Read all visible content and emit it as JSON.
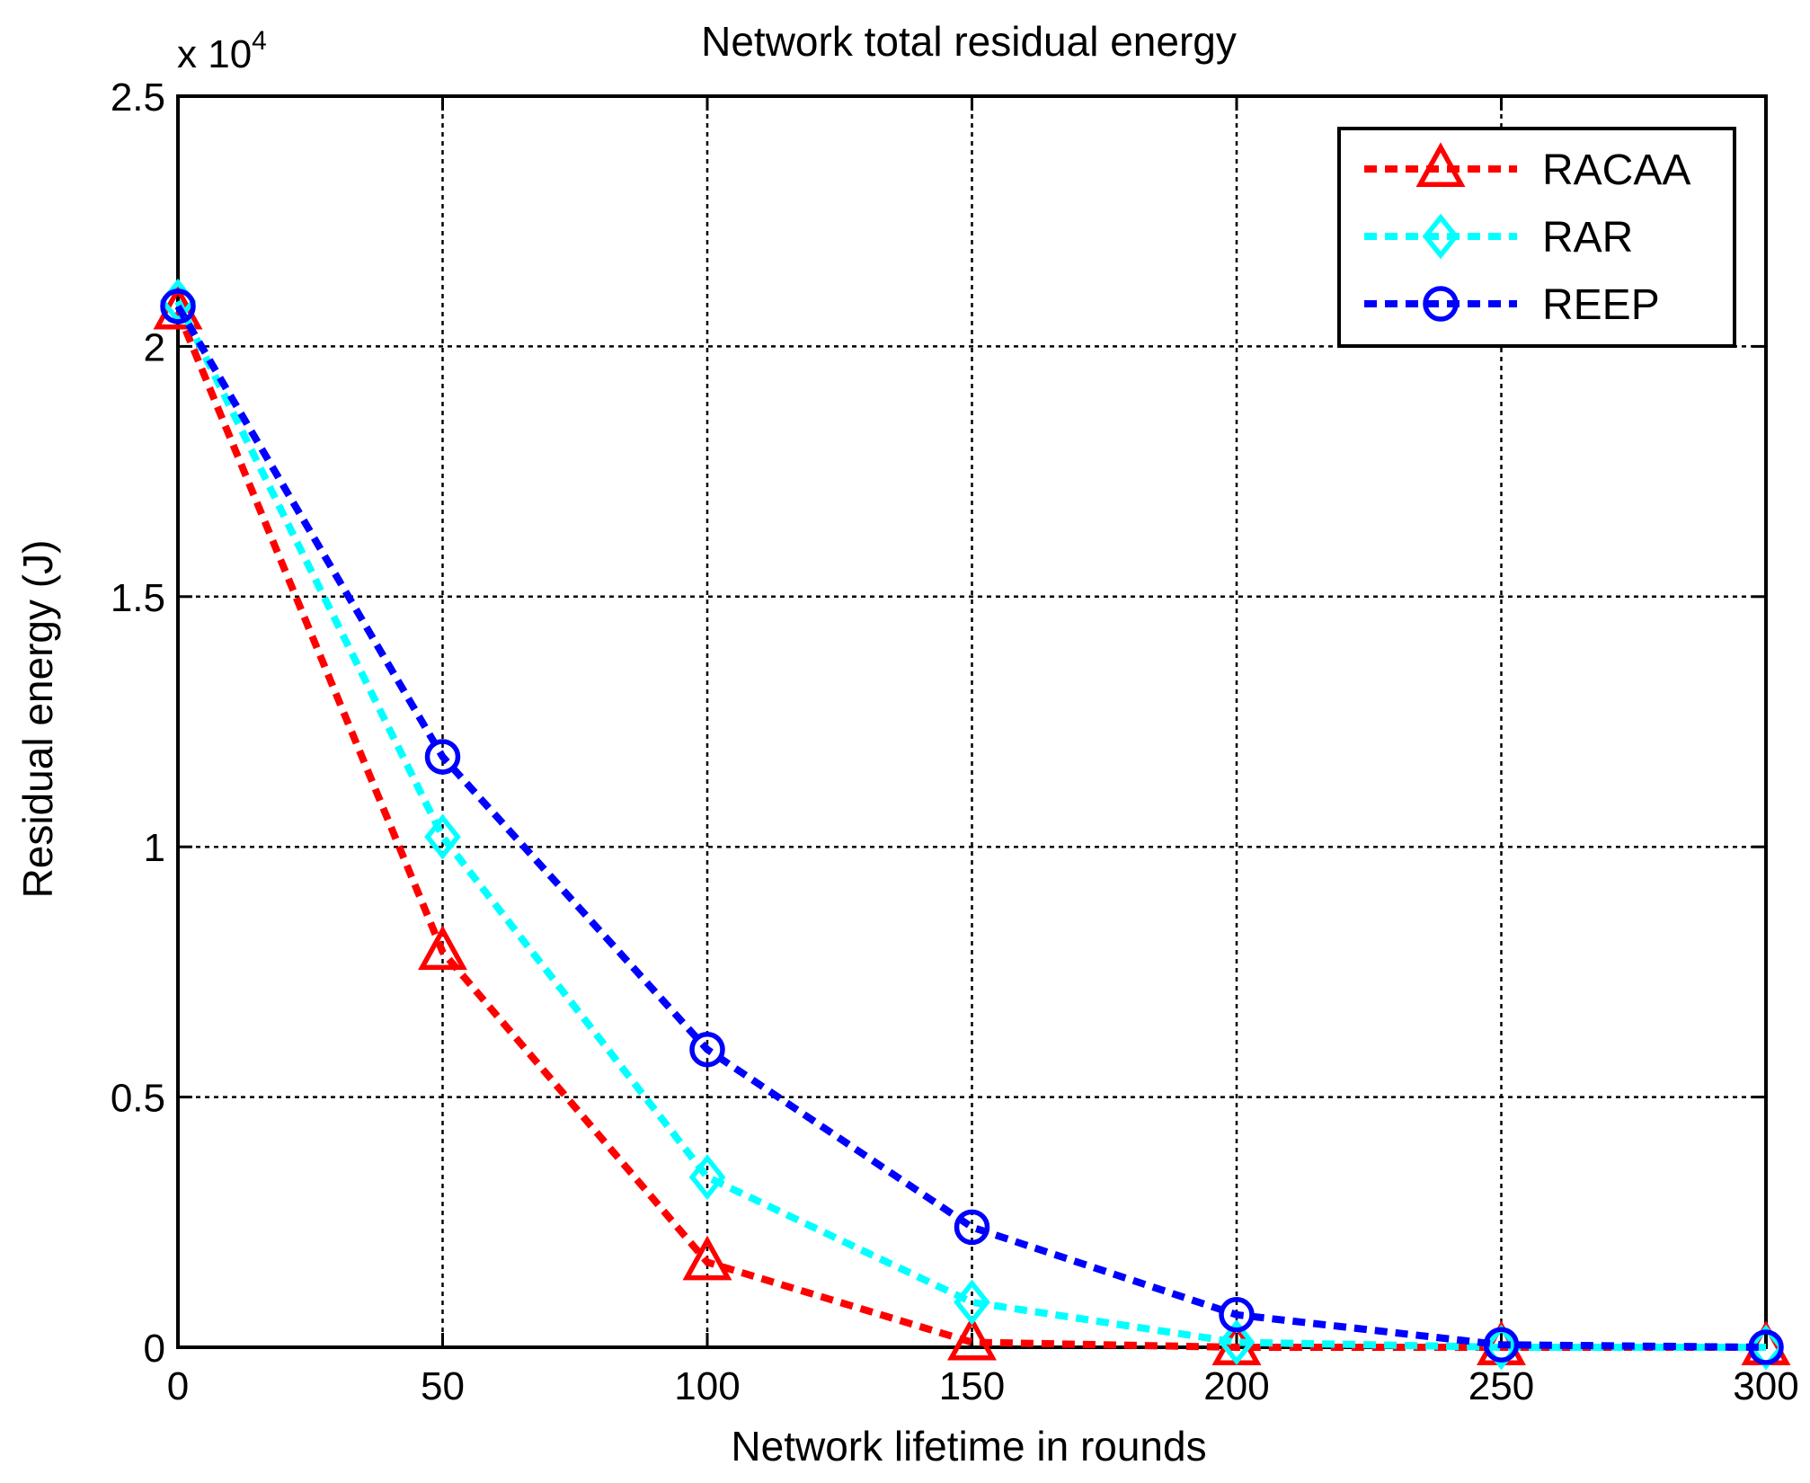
{
  "chart_data": {
    "type": "line",
    "title": "Network total residual energy",
    "xlabel": "Network lifetime in rounds",
    "ylabel": "Residual energy (J)",
    "y_multiplier_base": "x 10",
    "y_multiplier_exp": "4",
    "x": [
      0,
      50,
      100,
      150,
      200,
      250,
      300
    ],
    "xlim": [
      0,
      300
    ],
    "ylim": [
      0,
      2.5
    ],
    "x_ticks": [
      "0",
      "50",
      "100",
      "150",
      "200",
      "250",
      "300"
    ],
    "y_ticks": [
      "0",
      "0.5",
      "1",
      "1.5",
      "2",
      "2.5"
    ],
    "grid": true,
    "legend_position": "top-right",
    "series": [
      {
        "name": "RACAA",
        "color": "#ff0000",
        "marker": "triangle",
        "values": [
          2.07,
          0.79,
          0.17,
          0.01,
          0.0,
          0.0,
          0.0
        ]
      },
      {
        "name": "RAR",
        "color": "#00ffff",
        "marker": "diamond",
        "values": [
          2.09,
          1.02,
          0.34,
          0.09,
          0.01,
          0.0,
          0.0
        ]
      },
      {
        "name": "REEP",
        "color": "#0000ff",
        "marker": "circle",
        "values": [
          2.08,
          1.18,
          0.595,
          0.24,
          0.065,
          0.005,
          0.0
        ]
      }
    ]
  }
}
